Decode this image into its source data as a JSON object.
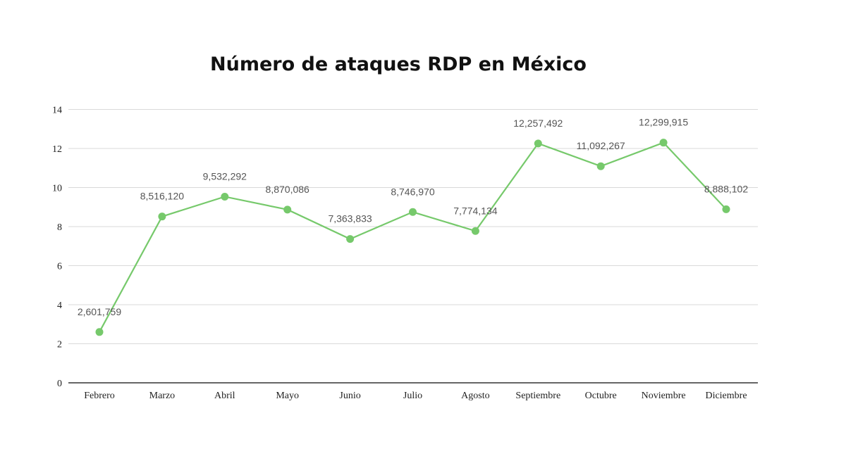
{
  "chart_data": {
    "type": "line",
    "title": "Número de ataques RDP en México",
    "xlabel": "",
    "ylabel": "",
    "categories": [
      "Febrero",
      "Marzo",
      "Abril",
      "Mayo",
      "Junio",
      "Julio",
      "Agosto",
      "Septiembre",
      "Octubre",
      "Noviembre",
      "Diciembre"
    ],
    "values": [
      2.601759,
      8.51612,
      9.532292,
      8.870086,
      7.363833,
      8.74697,
      7.774134,
      12.257492,
      11.092267,
      12.299915,
      8.888102
    ],
    "data_labels": [
      "2,601,759",
      "8,516,120",
      "9,532,292",
      "8,870,086",
      "7,363,833",
      "8,746,970",
      "7,774,134",
      "12,257,492",
      "11,092,267",
      "12,299,915",
      "8,888,102"
    ],
    "ylim": [
      0,
      14
    ],
    "yticks": [
      "0",
      "2",
      "4",
      "6",
      "8",
      "10",
      "12",
      "14"
    ],
    "grid": true,
    "legend": "none",
    "line_color": "#76c96b"
  }
}
